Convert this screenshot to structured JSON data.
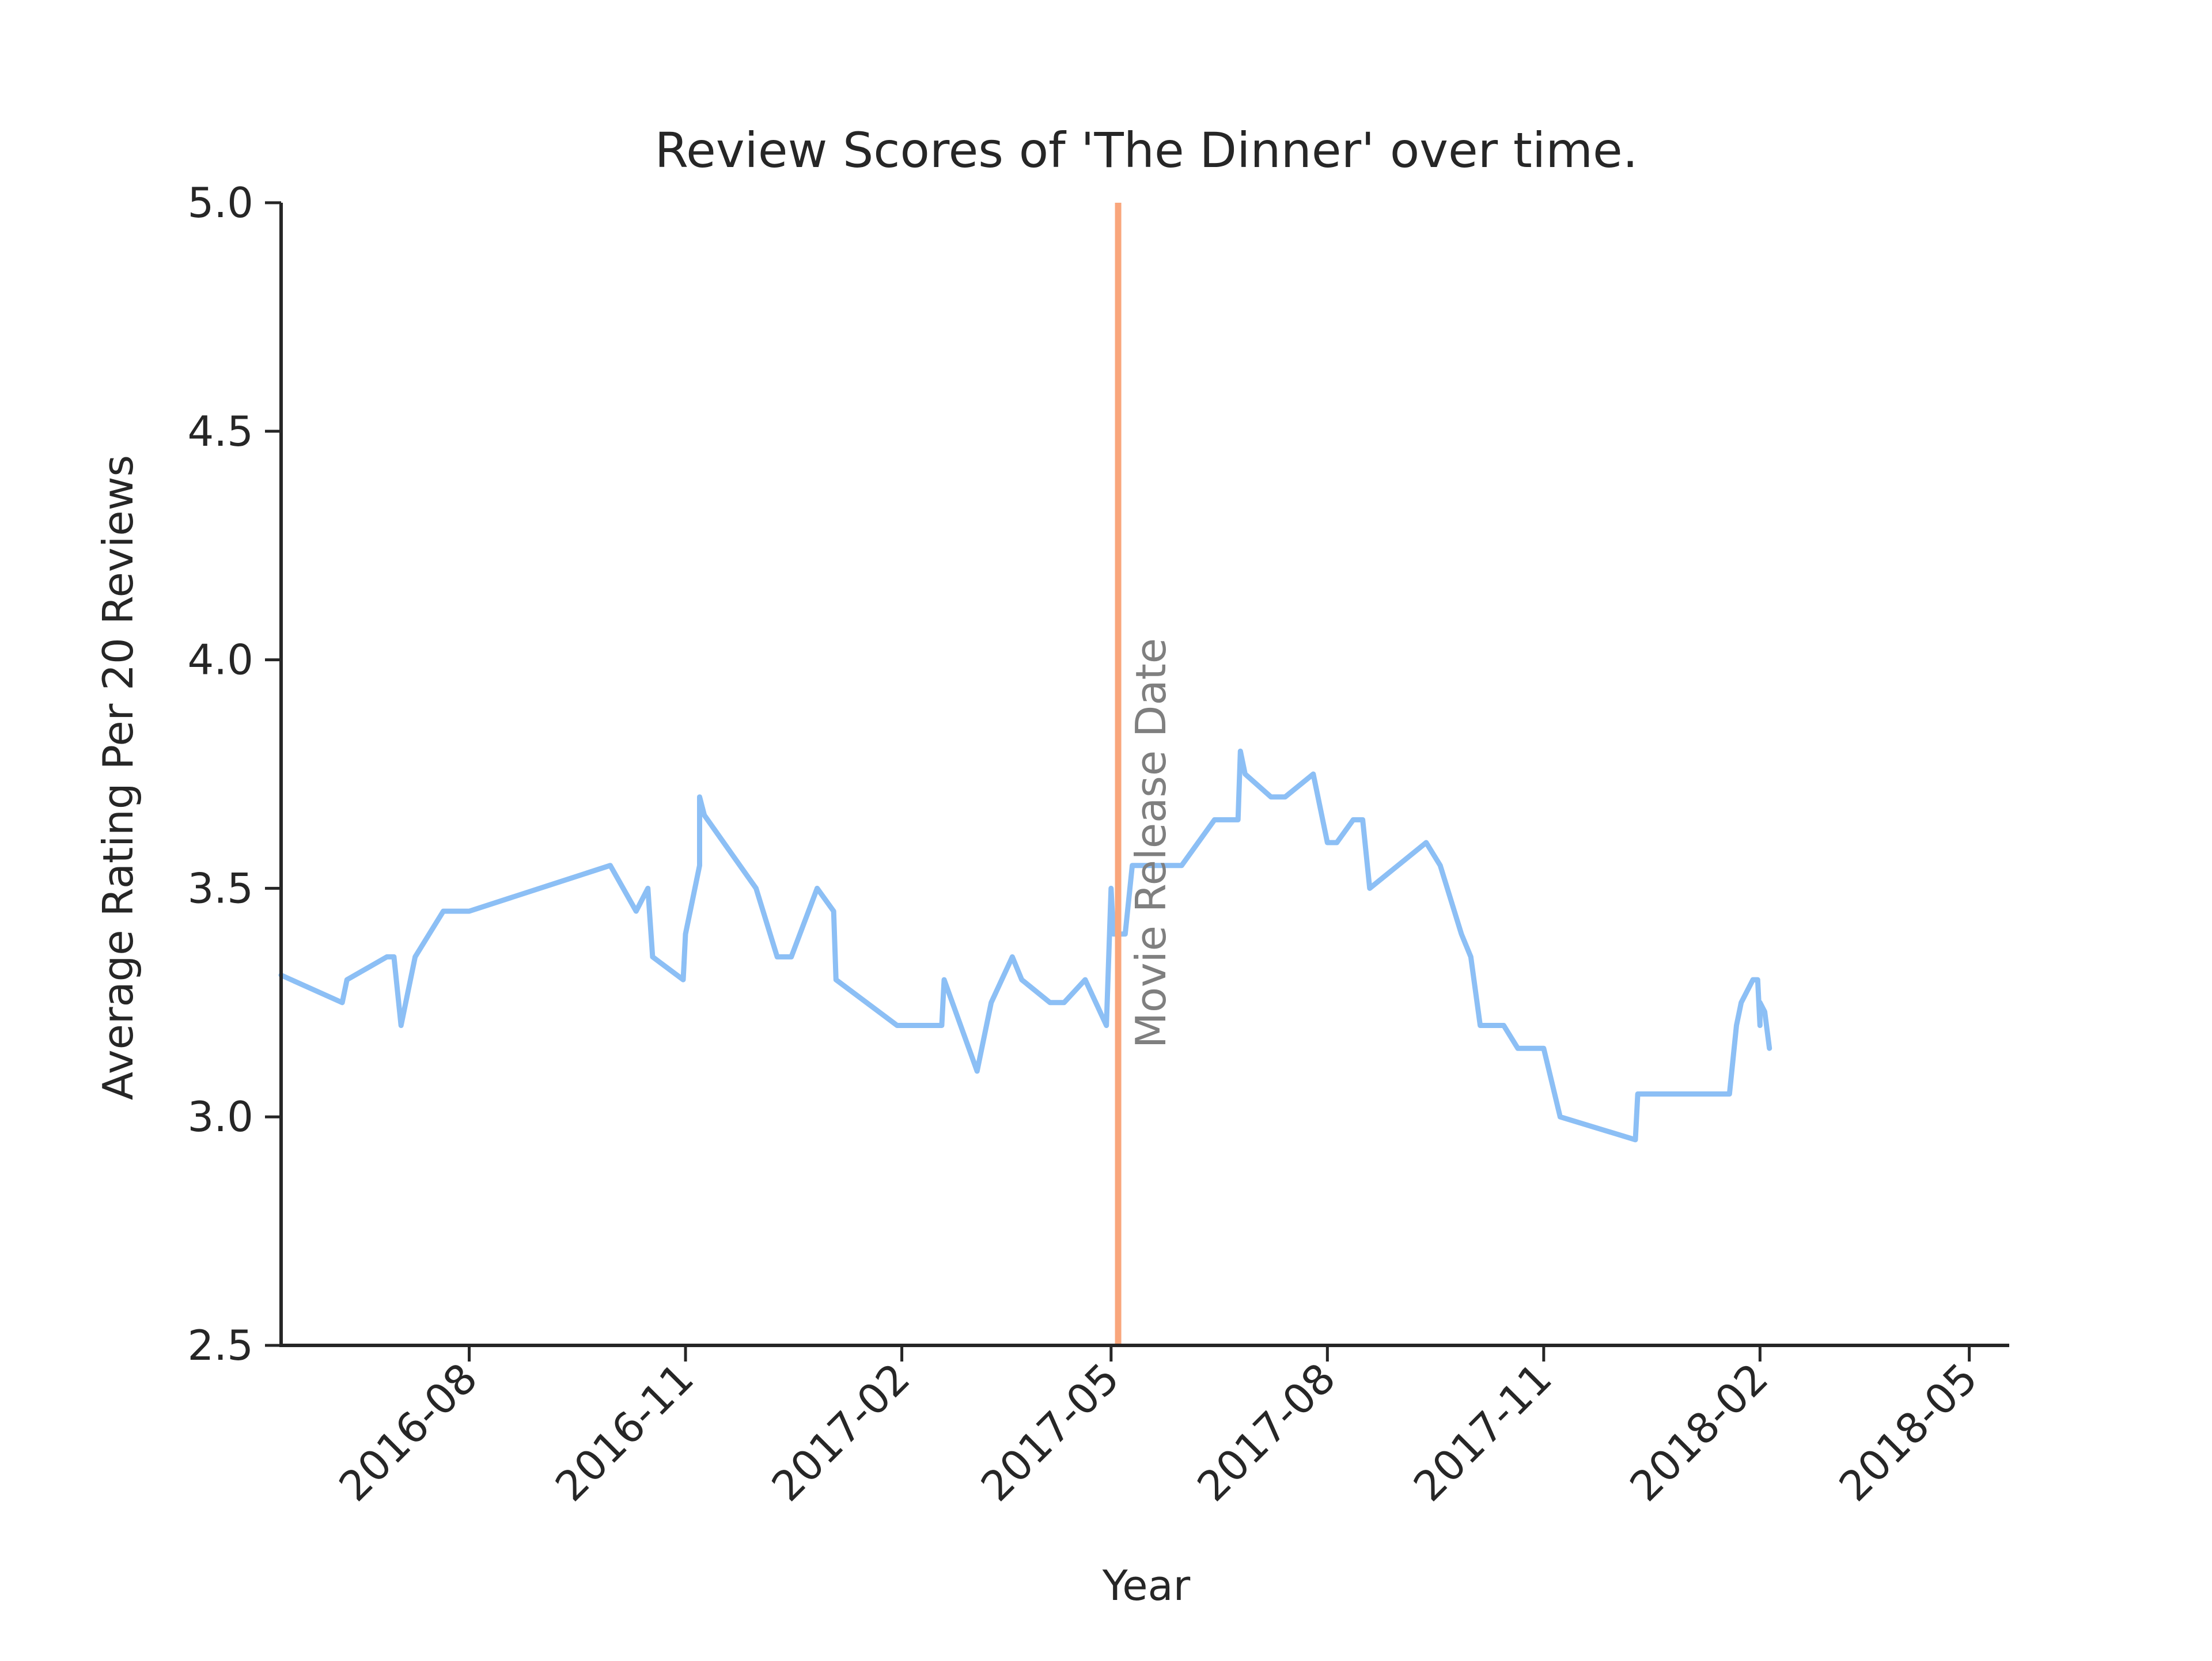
{
  "chart_data": {
    "type": "line",
    "title": "Review Scores of 'The Dinner' over time.",
    "xlabel": "Year",
    "ylabel": "Average Rating Per 20 Reviews",
    "xlim": [
      "2016-05-13",
      "2018-05-18"
    ],
    "ylim": [
      2.5,
      5.0
    ],
    "x_ticks": [
      "2016-08-01",
      "2016-11-01",
      "2017-02-01",
      "2017-05-01",
      "2017-08-01",
      "2017-11-01",
      "2018-02-01",
      "2018-05-01"
    ],
    "x_tick_labels": [
      "2016-08",
      "2016-11",
      "2017-02",
      "2017-05",
      "2017-08",
      "2017-11",
      "2018-02",
      "2018-05"
    ],
    "y_ticks": [
      2.5,
      3.0,
      3.5,
      4.0,
      4.5,
      5.0
    ],
    "y_tick_labels": [
      "2.5",
      "3.0",
      "3.5",
      "4.0",
      "4.5",
      "5.0"
    ],
    "grid": false,
    "series": [
      {
        "color": "#8cbff5",
        "points": [
          [
            "2016-05-13",
            3.31
          ],
          [
            "2016-06-08",
            3.25
          ],
          [
            "2016-06-10",
            3.3
          ],
          [
            "2016-06-27",
            3.35
          ],
          [
            "2016-06-30",
            3.35
          ],
          [
            "2016-07-03",
            3.2
          ],
          [
            "2016-07-09",
            3.35
          ],
          [
            "2016-07-15",
            3.4
          ],
          [
            "2016-07-21",
            3.45
          ],
          [
            "2016-08-01",
            3.45
          ],
          [
            "2016-09-30",
            3.55
          ],
          [
            "2016-10-11",
            3.45
          ],
          [
            "2016-10-16",
            3.5
          ],
          [
            "2016-10-18",
            3.35
          ],
          [
            "2016-10-31",
            3.3
          ],
          [
            "2016-11-01",
            3.4
          ],
          [
            "2016-11-07",
            3.55
          ],
          [
            "2016-11-07",
            3.7
          ],
          [
            "2016-11-09",
            3.66
          ],
          [
            "2016-12-01",
            3.5
          ],
          [
            "2016-12-10",
            3.35
          ],
          [
            "2016-12-16",
            3.35
          ],
          [
            "2016-12-27",
            3.5
          ],
          [
            "2017-01-03",
            3.45
          ],
          [
            "2017-01-04",
            3.3
          ],
          [
            "2017-01-30",
            3.2
          ],
          [
            "2017-02-18",
            3.2
          ],
          [
            "2017-02-19",
            3.3
          ],
          [
            "2017-03-05",
            3.1
          ],
          [
            "2017-03-11",
            3.25
          ],
          [
            "2017-03-20",
            3.35
          ],
          [
            "2017-03-24",
            3.3
          ],
          [
            "2017-04-05",
            3.25
          ],
          [
            "2017-04-11",
            3.25
          ],
          [
            "2017-04-20",
            3.3
          ],
          [
            "2017-04-29",
            3.2
          ],
          [
            "2017-05-01",
            3.5
          ],
          [
            "2017-05-02",
            3.4
          ],
          [
            "2017-05-07",
            3.4
          ],
          [
            "2017-05-10",
            3.55
          ],
          [
            "2017-05-31",
            3.55
          ],
          [
            "2017-06-14",
            3.65
          ],
          [
            "2017-06-24",
            3.65
          ],
          [
            "2017-06-25",
            3.8
          ],
          [
            "2017-06-27",
            3.75
          ],
          [
            "2017-07-08",
            3.7
          ],
          [
            "2017-07-14",
            3.7
          ],
          [
            "2017-07-26",
            3.75
          ],
          [
            "2017-08-01",
            3.6
          ],
          [
            "2017-08-05",
            3.6
          ],
          [
            "2017-08-12",
            3.65
          ],
          [
            "2017-08-16",
            3.65
          ],
          [
            "2017-08-19",
            3.5
          ],
          [
            "2017-09-12",
            3.6
          ],
          [
            "2017-09-18",
            3.55
          ],
          [
            "2017-09-27",
            3.4
          ],
          [
            "2017-10-01",
            3.35
          ],
          [
            "2017-10-05",
            3.2
          ],
          [
            "2017-10-15",
            3.2
          ],
          [
            "2017-10-21",
            3.15
          ],
          [
            "2017-11-01",
            3.15
          ],
          [
            "2017-11-08",
            3.0
          ],
          [
            "2017-12-10",
            2.95
          ],
          [
            "2017-12-11",
            3.05
          ],
          [
            "2018-01-19",
            3.05
          ],
          [
            "2018-01-22",
            3.2
          ],
          [
            "2018-01-24",
            3.25
          ],
          [
            "2018-01-29",
            3.3
          ],
          [
            "2018-01-31",
            3.3
          ],
          [
            "2018-02-01",
            3.2
          ],
          [
            "2018-02-01",
            3.25
          ],
          [
            "2018-02-03",
            3.23
          ],
          [
            "2018-02-05",
            3.15
          ]
        ]
      }
    ],
    "vline": {
      "x": "2017-05-04",
      "color": "#f9a67c",
      "label": "Movie Release Date",
      "label_color": "#7f7f7f",
      "label_y": 3.15
    }
  }
}
